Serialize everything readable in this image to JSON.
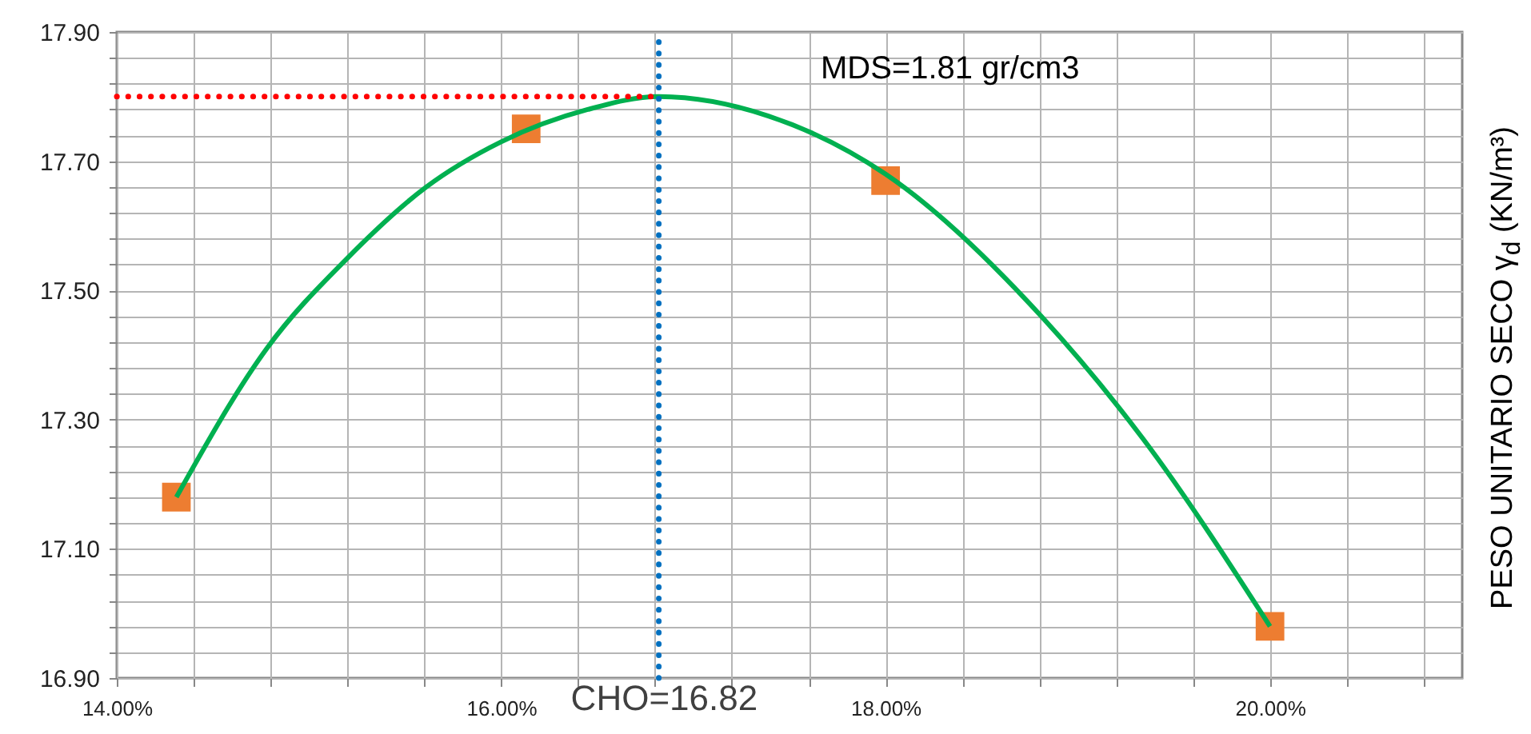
{
  "chart_data": {
    "type": "line",
    "ylabel": "PESO UNITARIO SECO γ$_{d}$ (KN/m³)",
    "xlim": [
      14,
      21
    ],
    "xticks": [
      {
        "value": 14,
        "label": "14.00%"
      },
      {
        "value": 14.4,
        "label": null
      },
      {
        "value": 14.8,
        "label": null
      },
      {
        "value": 15.2,
        "label": null
      },
      {
        "value": 15.6,
        "label": null
      },
      {
        "value": 16,
        "label": "16.00%"
      },
      {
        "value": 16.4,
        "label": null
      },
      {
        "value": 16.8,
        "label": null
      },
      {
        "value": 17.2,
        "label": null
      },
      {
        "value": 17.6,
        "label": null
      },
      {
        "value": 18,
        "label": "18.00%"
      },
      {
        "value": 18.4,
        "label": null
      },
      {
        "value": 18.8,
        "label": null
      },
      {
        "value": 19.2,
        "label": null
      },
      {
        "value": 19.6,
        "label": null
      },
      {
        "value": 20,
        "label": "20.00%"
      },
      {
        "value": 20.4,
        "label": null
      },
      {
        "value": 20.8,
        "label": null
      }
    ],
    "ylim": [
      16.9,
      17.9
    ],
    "yticks": [
      {
        "value": 16.9,
        "label": "16.90"
      },
      {
        "value": 16.94,
        "label": null
      },
      {
        "value": 16.98,
        "label": null
      },
      {
        "value": 17.02,
        "label": null
      },
      {
        "value": 17.06,
        "label": null
      },
      {
        "value": 17.1,
        "label": "17.10"
      },
      {
        "value": 17.14,
        "label": null
      },
      {
        "value": 17.18,
        "label": null
      },
      {
        "value": 17.22,
        "label": null
      },
      {
        "value": 17.26,
        "label": null
      },
      {
        "value": 17.3,
        "label": "17.30"
      },
      {
        "value": 17.34,
        "label": null
      },
      {
        "value": 17.38,
        "label": null
      },
      {
        "value": 17.42,
        "label": null
      },
      {
        "value": 17.46,
        "label": null
      },
      {
        "value": 17.5,
        "label": "17.50"
      },
      {
        "value": 17.54,
        "label": null
      },
      {
        "value": 17.58,
        "label": null
      },
      {
        "value": 17.62,
        "label": null
      },
      {
        "value": 17.66,
        "label": null
      },
      {
        "value": 17.7,
        "label": "17.70"
      },
      {
        "value": 17.74,
        "label": null
      },
      {
        "value": 17.78,
        "label": null
      },
      {
        "value": 17.82,
        "label": null
      },
      {
        "value": 17.86,
        "label": null
      },
      {
        "value": 17.9,
        "label": "17.90"
      }
    ],
    "grid": true,
    "series": [
      {
        "type": "scatter",
        "marker": "square",
        "color": "#ed7d31",
        "x": [
          14.31,
          16.13,
          18.0,
          20.0
        ],
        "values": [
          17.18,
          17.75,
          17.67,
          16.98
        ]
      },
      {
        "color": "#00b050",
        "line_style": "solid",
        "x": [
          14.31,
          14.78,
          15.2,
          15.61,
          16.0,
          16.45,
          16.82,
          17.39,
          18.0,
          18.81,
          19.34,
          20.0
        ],
        "values": [
          17.18,
          17.41,
          17.55,
          17.66,
          17.73,
          17.78,
          17.8,
          17.77,
          17.68,
          17.46,
          17.27,
          16.98
        ]
      }
    ],
    "ref_lines": [
      {
        "axis": "x",
        "value": 16.82,
        "label": "CHO=16.82",
        "color": "#0070c0",
        "line_style": "dotted"
      },
      {
        "axis": "y",
        "value": 17.8,
        "color": "#ff0000",
        "line_style": "dotted"
      }
    ],
    "annotations": [
      "MDS=1.81 gr/cm3"
    ]
  }
}
